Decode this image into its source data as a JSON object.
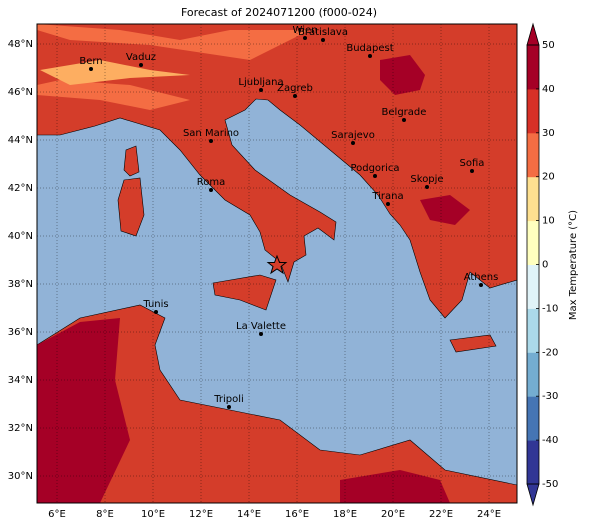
{
  "title": "Forecast of 2024071200 (f000-024)",
  "lat_ticks": [
    {
      "value": 48,
      "label": "48°N"
    },
    {
      "value": 46,
      "label": "46°N"
    },
    {
      "value": 44,
      "label": "44°N"
    },
    {
      "value": 42,
      "label": "42°N"
    },
    {
      "value": 40,
      "label": "40°N"
    },
    {
      "value": 38,
      "label": "38°N"
    },
    {
      "value": 36,
      "label": "36°N"
    },
    {
      "value": 34,
      "label": "34°N"
    },
    {
      "value": 32,
      "label": "32°N"
    },
    {
      "value": 30,
      "label": "30°N"
    }
  ],
  "lon_ticks": [
    {
      "value": 6,
      "label": "6°E"
    },
    {
      "value": 8,
      "label": "8°E"
    },
    {
      "value": 10,
      "label": "10°E"
    },
    {
      "value": 12,
      "label": "12°E"
    },
    {
      "value": 14,
      "label": "14°E"
    },
    {
      "value": 16,
      "label": "16°E"
    },
    {
      "value": 18,
      "label": "18°E"
    },
    {
      "value": 20,
      "label": "20°E"
    },
    {
      "value": 22,
      "label": "22°E"
    },
    {
      "value": 24,
      "label": "24°E"
    }
  ],
  "cities": [
    "Wien",
    "Bratislava",
    "Budapest",
    "Bern",
    "Vaduz",
    "Ljubljana",
    "Zagreb",
    "Belgrade",
    "San Marino",
    "Sarajevo",
    "Podgorica",
    "Skopje",
    "Sofia",
    "Roma",
    "Tirana",
    "Athens",
    "Tunis",
    "La Valette",
    "Tripoli"
  ],
  "colorbar": {
    "label": "Max Temperature (°C)",
    "lim": [
      -50,
      50
    ],
    "ticks": [
      50,
      40,
      30,
      20,
      10,
      0,
      -10,
      -20,
      -30,
      -40,
      -50
    ],
    "colors": [
      "#313695",
      "#4575b4",
      "#74add1",
      "#abd9e9",
      "#e0f3f8",
      "#ffffbf",
      "#fee090",
      "#f46d43",
      "#d73027",
      "#a50026"
    ]
  }
}
